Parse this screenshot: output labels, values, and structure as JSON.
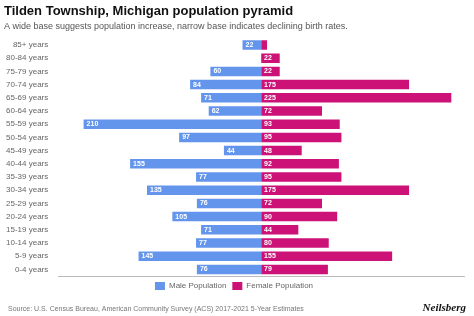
{
  "chart_data": {
    "type": "bar",
    "orientation": "horizontal",
    "title": "Tilden Township, Michigan population pyramid",
    "subtitle": "A wide base suggests population increase, narrow base indicates declining birth rates.",
    "annotations": [
      "Source: U.S. Census Bureau, American Community Survey (ACS) 2017-2021 5-Year Estimates",
      "Neilsberg"
    ],
    "categories": [
      "0-4 years",
      "5-9 years",
      "10-14 years",
      "15-19 years",
      "20-24 years",
      "25-29 years",
      "30-34 years",
      "35-39 years",
      "40-44 years",
      "45-49 years",
      "50-54 years",
      "55-59 years",
      "60-64 years",
      "65-69 years",
      "70-74 years",
      "75-79 years",
      "80-84 years",
      "85+ years"
    ],
    "series": [
      {
        "name": "Male Population",
        "color": "#6495ED",
        "values": [
          76,
          145,
          77,
          71,
          105,
          76,
          135,
          77,
          155,
          44,
          97,
          210,
          62,
          71,
          84,
          60,
          0,
          22
        ],
        "value_labels": [
          "76",
          "145",
          "77",
          "71",
          "105",
          "76",
          "135",
          "77",
          "155",
          "44",
          "97",
          "210",
          "62",
          "71",
          "84",
          "60",
          null,
          "22"
        ]
      },
      {
        "name": "Female Population",
        "color": "#CC1177",
        "values": [
          79,
          155,
          80,
          44,
          90,
          72,
          175,
          95,
          92,
          48,
          95,
          93,
          72,
          225,
          175,
          22,
          22,
          7
        ],
        "value_labels": [
          "79",
          "155",
          "80",
          "44",
          "90",
          "72",
          "175",
          "95",
          "92",
          "48",
          "95",
          "93",
          "72",
          "225",
          "175",
          "22",
          "22",
          null
        ]
      }
    ],
    "xlim": [
      0,
      240
    ],
    "tick_labels": "y",
    "grid": false,
    "legend": "bottom",
    "data_labels": true
  }
}
